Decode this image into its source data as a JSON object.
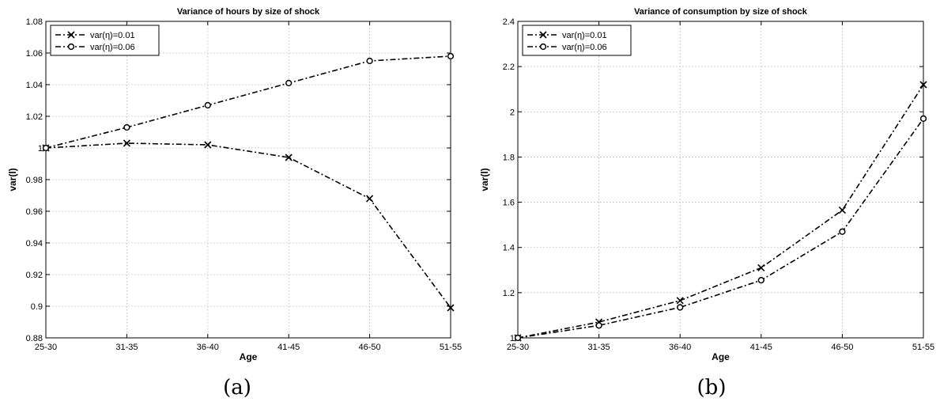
{
  "chart_data": [
    {
      "type": "line",
      "caption": "(a)",
      "title": "Variance of hours by size of shock",
      "xlabel": "Age",
      "ylabel": "var(l)",
      "categories": [
        "25-30",
        "31-35",
        "36-40",
        "41-45",
        "46-50",
        "51-55"
      ],
      "ylim": [
        0.88,
        1.08
      ],
      "yticks": [
        "0.88",
        "0.9",
        "0.92",
        "0.94",
        "0.96",
        "0.98",
        "1",
        "1.02",
        "1.04",
        "1.06",
        "1.08"
      ],
      "ytick_values": [
        0.88,
        0.9,
        0.92,
        0.94,
        0.96,
        0.98,
        1.0,
        1.02,
        1.04,
        1.06,
        1.08
      ],
      "grid": true,
      "legend": "top-left",
      "series": [
        {
          "name": "var(η)=0.01",
          "marker": "x",
          "values": [
            1.0,
            1.003,
            1.002,
            0.994,
            0.968,
            0.899
          ]
        },
        {
          "name": "var(η)=0.06",
          "marker": "o",
          "values": [
            1.0,
            1.013,
            1.027,
            1.041,
            1.055,
            1.058
          ]
        }
      ]
    },
    {
      "type": "line",
      "caption": "(b)",
      "title": "Variance of consumption by size of shock",
      "xlabel": "Age",
      "ylabel": "var(l)",
      "categories": [
        "25-30",
        "31-35",
        "36-40",
        "41-45",
        "46-50",
        "51-55"
      ],
      "ylim": [
        1.0,
        2.4
      ],
      "yticks": [
        "1",
        "1.2",
        "1.4",
        "1.6",
        "1.8",
        "2",
        "2.2",
        "2.4"
      ],
      "ytick_values": [
        1.0,
        1.2,
        1.4,
        1.6,
        1.8,
        2.0,
        2.2,
        2.4
      ],
      "grid": true,
      "legend": "top-left",
      "series": [
        {
          "name": "var(η)=0.01",
          "marker": "x",
          "values": [
            1.0,
            1.07,
            1.165,
            1.31,
            1.565,
            2.12
          ]
        },
        {
          "name": "var(η)=0.06",
          "marker": "o",
          "values": [
            1.0,
            1.055,
            1.135,
            1.255,
            1.47,
            1.97
          ]
        }
      ]
    }
  ]
}
